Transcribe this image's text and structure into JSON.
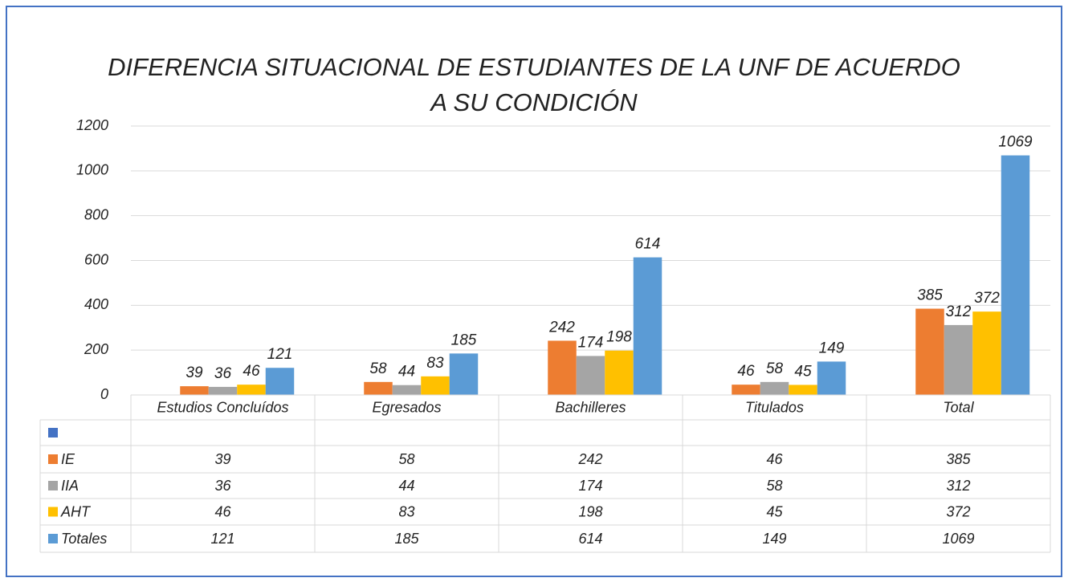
{
  "chart_data": {
    "type": "bar",
    "title": "DIFERENCIA SITUACIONAL DE ESTUDIANTES DE LA UNF DE ACUERDO",
    "subtitle": "A SU CONDICIÓN",
    "categories": [
      "Estudios Concluídos",
      "Egresados",
      "Bachilleres",
      "Titulados",
      "Total"
    ],
    "series": [
      {
        "name": null,
        "color": "#4472c4",
        "values": [
          null,
          null,
          null,
          null,
          null
        ]
      },
      {
        "name": "IE",
        "color": "#ed7d31",
        "values": [
          39,
          58,
          242,
          46,
          385
        ]
      },
      {
        "name": "IIA",
        "color": "#a5a5a5",
        "values": [
          36,
          44,
          174,
          58,
          312
        ]
      },
      {
        "name": "AHT",
        "color": "#ffc000",
        "values": [
          46,
          83,
          198,
          45,
          372
        ]
      },
      {
        "name": "Totales",
        "color": "#5b9bd5",
        "values": [
          121,
          185,
          614,
          149,
          1069
        ]
      }
    ],
    "ylim": [
      0,
      1200
    ],
    "yticks": [
      0,
      200,
      400,
      600,
      800,
      1000,
      1200
    ],
    "grid": true,
    "data_table": true
  }
}
